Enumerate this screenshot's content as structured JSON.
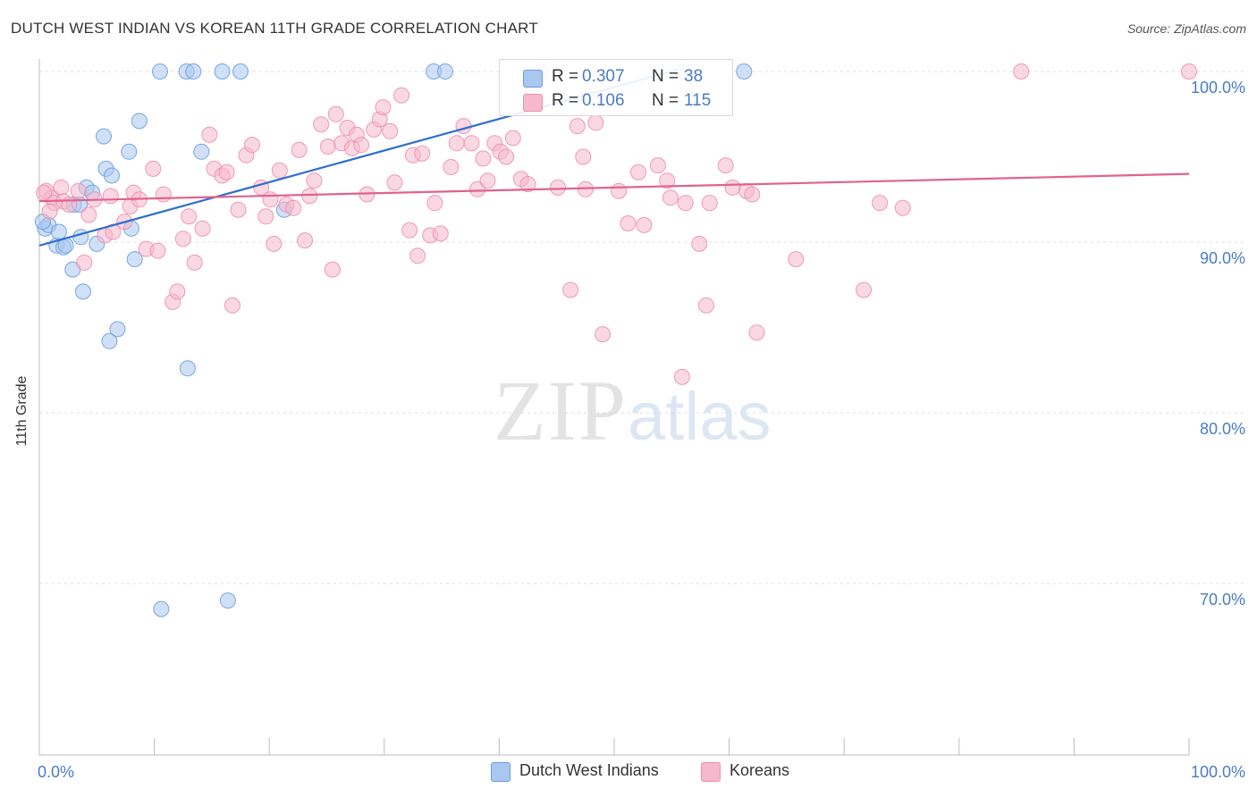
{
  "header": {
    "title": "DUTCH WEST INDIAN VS KOREAN 11TH GRADE CORRELATION CHART",
    "source": "Source: ZipAtlas.com"
  },
  "watermark": {
    "zip": "ZIP",
    "atlas": "atlas"
  },
  "legend_stats": [
    {
      "r_label": "R = ",
      "r_value": "0.307",
      "n_label": "N = ",
      "n_value": "38",
      "color": "#a9c7ef"
    },
    {
      "r_label": "R = ",
      "r_value": "0.106",
      "n_label": "N = ",
      "n_value": "115",
      "color": "#f6b8cc"
    }
  ],
  "legend_series": [
    {
      "label": "Dutch West Indians",
      "color": "#a9c7ef"
    },
    {
      "label": "Koreans",
      "color": "#f6b8cc"
    }
  ],
  "chart_data": {
    "type": "scatter",
    "title": "DUTCH WEST INDIAN VS KOREAN 11TH GRADE CORRELATION CHART",
    "xlabel": "",
    "ylabel": "11th Grade",
    "xlim": [
      0,
      100
    ],
    "ylim": [
      61,
      101
    ],
    "x_tick_labels": [
      {
        "value": 0,
        "label": "0.0%"
      },
      {
        "value": 100,
        "label": "100.0%"
      }
    ],
    "y_tick_labels": [
      {
        "value": 100,
        "label": "100.0%"
      },
      {
        "value": 90,
        "label": "90.0%"
      },
      {
        "value": 80,
        "label": "80.0%"
      },
      {
        "value": 70,
        "label": "70.0%"
      }
    ],
    "x_minor_ticks": [
      0,
      10,
      20,
      30,
      40,
      50,
      60,
      70,
      80,
      90,
      100
    ],
    "grid": true,
    "series": [
      {
        "name": "Dutch West Indians",
        "color": "#6a9ee0",
        "fill": "#a9c7ef",
        "trend": {
          "x": [
            0,
            55.5
          ],
          "y": [
            89.8,
            100.1
          ],
          "color": "#2f6fce"
        },
        "points": [
          [
            0.5,
            90.8
          ],
          [
            0.8,
            91.0
          ],
          [
            1.5,
            89.8
          ],
          [
            1.7,
            90.6
          ],
          [
            2.1,
            89.7
          ],
          [
            2.3,
            89.8
          ],
          [
            3.0,
            92.2
          ],
          [
            2.9,
            88.4
          ],
          [
            3.5,
            92.2
          ],
          [
            3.6,
            90.3
          ],
          [
            3.8,
            87.1
          ],
          [
            4.1,
            93.2
          ],
          [
            4.6,
            92.9
          ],
          [
            5.0,
            89.9
          ],
          [
            5.6,
            96.2
          ],
          [
            5.8,
            94.3
          ],
          [
            6.3,
            93.9
          ],
          [
            6.1,
            84.2
          ],
          [
            6.8,
            84.9
          ],
          [
            7.8,
            95.3
          ],
          [
            8.0,
            90.8
          ],
          [
            8.3,
            89.0
          ],
          [
            8.7,
            97.1
          ],
          [
            10.5,
            100
          ],
          [
            10.6,
            68.5
          ],
          [
            12.8,
            100
          ],
          [
            13.4,
            100
          ],
          [
            12.9,
            82.6
          ],
          [
            14.1,
            95.3
          ],
          [
            15.9,
            100
          ],
          [
            16.4,
            69.0
          ],
          [
            17.5,
            100
          ],
          [
            21.3,
            91.9
          ],
          [
            34.3,
            100
          ],
          [
            35.3,
            100
          ],
          [
            61.3,
            100
          ],
          [
            56.0,
            100
          ],
          [
            0.3,
            91.2
          ]
        ]
      },
      {
        "name": "Koreans",
        "color": "#ee8fae",
        "fill": "#f6b8cc",
        "trend": {
          "x": [
            0,
            100
          ],
          "y": [
            92.4,
            94.0
          ],
          "color": "#e0628c"
        },
        "points": [
          [
            0.6,
            93.0
          ],
          [
            1.1,
            92.6
          ],
          [
            1.3,
            92.3
          ],
          [
            1.9,
            93.2
          ],
          [
            2.1,
            92.4
          ],
          [
            2.6,
            92.2
          ],
          [
            3.4,
            93.0
          ],
          [
            3.9,
            88.8
          ],
          [
            4.3,
            91.6
          ],
          [
            4.8,
            92.5
          ],
          [
            5.7,
            90.4
          ],
          [
            6.2,
            92.7
          ],
          [
            6.4,
            90.6
          ],
          [
            7.4,
            91.2
          ],
          [
            7.9,
            92.1
          ],
          [
            8.2,
            92.9
          ],
          [
            8.7,
            92.5
          ],
          [
            9.3,
            89.6
          ],
          [
            9.9,
            94.3
          ],
          [
            10.3,
            89.5
          ],
          [
            10.8,
            92.8
          ],
          [
            11.6,
            86.5
          ],
          [
            12.0,
            87.1
          ],
          [
            12.5,
            90.2
          ],
          [
            13.0,
            91.5
          ],
          [
            13.5,
            88.8
          ],
          [
            14.2,
            90.8
          ],
          [
            14.8,
            96.3
          ],
          [
            15.2,
            94.3
          ],
          [
            15.9,
            93.9
          ],
          [
            16.3,
            94.1
          ],
          [
            16.8,
            86.3
          ],
          [
            17.3,
            91.9
          ],
          [
            18.0,
            95.1
          ],
          [
            18.5,
            95.7
          ],
          [
            19.3,
            93.2
          ],
          [
            19.7,
            91.5
          ],
          [
            20.1,
            92.5
          ],
          [
            20.4,
            89.9
          ],
          [
            20.9,
            94.2
          ],
          [
            21.5,
            92.2
          ],
          [
            22.1,
            92.0
          ],
          [
            22.6,
            95.4
          ],
          [
            23.1,
            90.1
          ],
          [
            23.5,
            92.7
          ],
          [
            23.9,
            93.6
          ],
          [
            24.5,
            96.9
          ],
          [
            25.1,
            95.6
          ],
          [
            25.5,
            88.4
          ],
          [
            25.8,
            97.5
          ],
          [
            26.3,
            95.8
          ],
          [
            26.8,
            96.7
          ],
          [
            27.2,
            95.5
          ],
          [
            27.6,
            96.3
          ],
          [
            28.0,
            95.7
          ],
          [
            28.5,
            92.8
          ],
          [
            29.1,
            96.6
          ],
          [
            29.6,
            97.2
          ],
          [
            29.9,
            97.9
          ],
          [
            30.5,
            96.5
          ],
          [
            30.9,
            93.5
          ],
          [
            31.5,
            98.6
          ],
          [
            32.2,
            90.7
          ],
          [
            32.5,
            95.1
          ],
          [
            32.9,
            89.2
          ],
          [
            33.3,
            95.2
          ],
          [
            34.0,
            90.4
          ],
          [
            34.4,
            92.3
          ],
          [
            34.9,
            90.5
          ],
          [
            35.8,
            94.4
          ],
          [
            36.3,
            95.8
          ],
          [
            36.9,
            96.8
          ],
          [
            37.6,
            95.8
          ],
          [
            38.1,
            93.1
          ],
          [
            38.6,
            94.9
          ],
          [
            39.0,
            93.6
          ],
          [
            39.6,
            95.8
          ],
          [
            40.1,
            95.3
          ],
          [
            40.6,
            95.0
          ],
          [
            41.2,
            96.1
          ],
          [
            41.9,
            93.7
          ],
          [
            42.5,
            93.4
          ],
          [
            43.7,
            100.0
          ],
          [
            45.1,
            93.2
          ],
          [
            46.2,
            87.2
          ],
          [
            46.8,
            96.8
          ],
          [
            47.3,
            95.0
          ],
          [
            47.5,
            93.1
          ],
          [
            48.4,
            97.0
          ],
          [
            49.0,
            84.6
          ],
          [
            50.4,
            93.0
          ],
          [
            51.2,
            91.1
          ],
          [
            52.1,
            94.1
          ],
          [
            52.6,
            91.0
          ],
          [
            53.8,
            94.5
          ],
          [
            54.6,
            93.6
          ],
          [
            54.9,
            92.6
          ],
          [
            55.9,
            82.1
          ],
          [
            56.2,
            92.3
          ],
          [
            57.4,
            89.9
          ],
          [
            58.0,
            86.3
          ],
          [
            58.3,
            92.3
          ],
          [
            59.7,
            94.5
          ],
          [
            60.3,
            93.2
          ],
          [
            61.5,
            93.0
          ],
          [
            62.0,
            92.8
          ],
          [
            62.4,
            84.7
          ],
          [
            65.8,
            89.0
          ],
          [
            71.7,
            87.2
          ],
          [
            73.1,
            92.3
          ],
          [
            75.1,
            92.0
          ],
          [
            85.4,
            100.0
          ],
          [
            100.0,
            100.0
          ],
          [
            0.4,
            92.9
          ],
          [
            0.9,
            91.8
          ]
        ]
      }
    ]
  }
}
